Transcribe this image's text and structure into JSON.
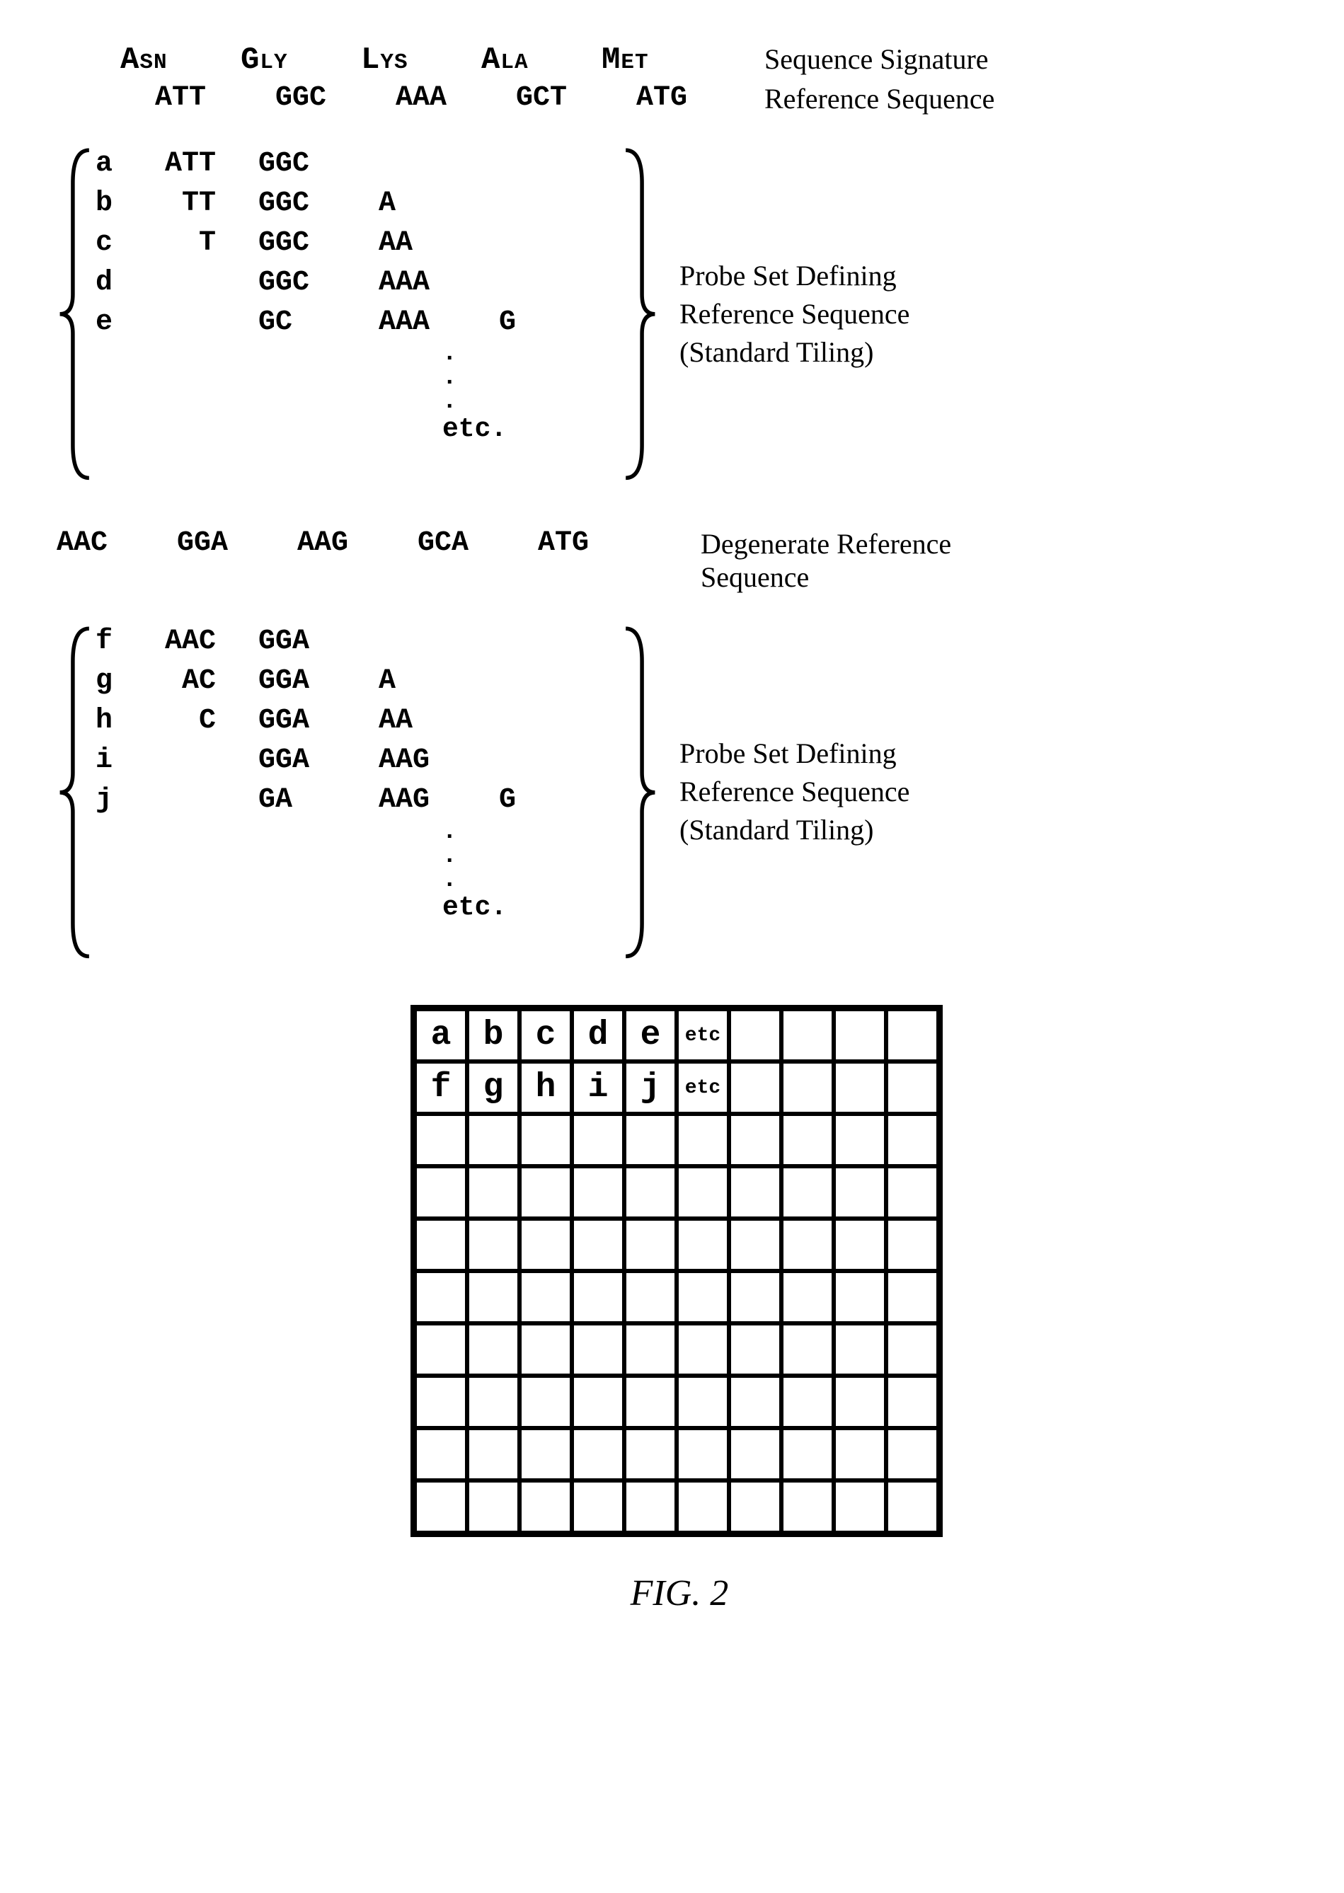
{
  "figure_label": "FIG. 2",
  "colors": {
    "fg": "#000000",
    "bg": "#ffffff"
  },
  "fonts": {
    "mono": "Courier New",
    "serif": "Georgia"
  },
  "font_sizes": {
    "amino": 44,
    "codon": 40,
    "label": 40,
    "serif": 40,
    "grid_big": 48,
    "grid_small": 28,
    "fig": 52
  },
  "header": {
    "amino_row": [
      "Asn",
      "Gly",
      "Lys",
      "Ala",
      "Met"
    ],
    "codon_row": [
      "ATT",
      "GGC",
      "AAA",
      "GCT",
      "ATG"
    ],
    "label_amino": "Sequence Signature",
    "label_codon": "Reference Sequence"
  },
  "probe_set_1": {
    "caption_lines": [
      "Probe Set Defining",
      "Reference Sequence",
      "(Standard Tiling)"
    ],
    "rows": [
      {
        "id": "a",
        "cols": [
          "ATT",
          "GGC",
          "",
          ""
        ]
      },
      {
        "id": "b",
        "cols": [
          "TT",
          "GGC",
          "A",
          ""
        ]
      },
      {
        "id": "c",
        "cols": [
          "T",
          "GGC",
          "AA",
          ""
        ]
      },
      {
        "id": "d",
        "cols": [
          "",
          "GGC",
          "AAA",
          ""
        ]
      },
      {
        "id": "e",
        "cols": [
          "",
          "GC",
          "AAA",
          "G"
        ]
      }
    ],
    "etc": "etc."
  },
  "degenerate": {
    "codon_row": [
      "AAC",
      "GGA",
      "AAG",
      "GCA",
      "ATG"
    ],
    "label_lines": [
      "Degenerate Reference",
      "Sequence"
    ]
  },
  "probe_set_2": {
    "caption_lines": [
      "Probe Set Defining",
      "Reference Sequence",
      "(Standard Tiling)"
    ],
    "rows": [
      {
        "id": "f",
        "cols": [
          "AAC",
          "GGA",
          "",
          ""
        ]
      },
      {
        "id": "g",
        "cols": [
          "AC",
          "GGA",
          "A",
          ""
        ]
      },
      {
        "id": "h",
        "cols": [
          "C",
          "GGA",
          "AA",
          ""
        ]
      },
      {
        "id": "i",
        "cols": [
          "",
          "GGA",
          "AAG",
          ""
        ]
      },
      {
        "id": "j",
        "cols": [
          "",
          "GA",
          "AAG",
          "G"
        ]
      }
    ],
    "etc": "etc."
  },
  "grid": {
    "size": [
      10,
      10
    ],
    "border_width_outer": 6,
    "border_width_inner": 3,
    "cells": [
      [
        "a",
        "b",
        "c",
        "d",
        "e",
        "etc",
        "",
        "",
        "",
        ""
      ],
      [
        "f",
        "g",
        "h",
        "i",
        "j",
        "etc",
        "",
        "",
        "",
        ""
      ],
      [
        "",
        "",
        "",
        "",
        "",
        "",
        "",
        "",
        "",
        ""
      ],
      [
        "",
        "",
        "",
        "",
        "",
        "",
        "",
        "",
        "",
        ""
      ],
      [
        "",
        "",
        "",
        "",
        "",
        "",
        "",
        "",
        "",
        ""
      ],
      [
        "",
        "",
        "",
        "",
        "",
        "",
        "",
        "",
        "",
        ""
      ],
      [
        "",
        "",
        "",
        "",
        "",
        "",
        "",
        "",
        "",
        ""
      ],
      [
        "",
        "",
        "",
        "",
        "",
        "",
        "",
        "",
        "",
        ""
      ],
      [
        "",
        "",
        "",
        "",
        "",
        "",
        "",
        "",
        "",
        ""
      ],
      [
        "",
        "",
        "",
        "",
        "",
        "",
        "",
        "",
        "",
        ""
      ]
    ],
    "small_text_cells": [
      "etc"
    ]
  }
}
